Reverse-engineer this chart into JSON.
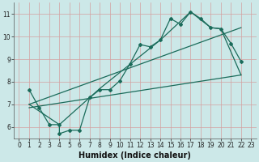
{
  "title": "",
  "xlabel": "Humidex (Indice chaleur)",
  "xlim": [
    -0.5,
    23.5
  ],
  "ylim": [
    5.5,
    11.5
  ],
  "xticks": [
    0,
    1,
    2,
    3,
    4,
    5,
    6,
    7,
    8,
    9,
    10,
    11,
    12,
    13,
    14,
    15,
    16,
    17,
    18,
    19,
    20,
    21,
    22,
    23
  ],
  "yticks": [
    6,
    7,
    8,
    9,
    10,
    11
  ],
  "bg_color": "#cce8e8",
  "grid_color": "#d4a0a0",
  "line_color": "#1a6b5a",
  "line1_x": [
    1,
    2,
    3,
    4,
    4,
    5,
    6,
    7,
    8,
    9,
    10,
    11,
    12,
    13,
    14,
    15,
    16,
    17,
    18,
    19,
    20,
    21,
    22
  ],
  "line1_y": [
    7.65,
    6.85,
    6.1,
    6.1,
    5.7,
    5.85,
    5.85,
    7.3,
    7.65,
    7.65,
    8.05,
    8.8,
    9.65,
    9.55,
    9.85,
    10.8,
    10.55,
    11.1,
    10.8,
    10.4,
    10.35,
    9.7,
    8.9
  ],
  "line2_x": [
    1,
    22
  ],
  "line2_y": [
    6.85,
    8.3
  ],
  "line3_x": [
    1,
    22
  ],
  "line3_y": [
    7.0,
    10.4
  ],
  "line4_x": [
    1,
    4,
    8,
    14,
    17,
    19,
    20,
    22
  ],
  "line4_y": [
    7.0,
    6.1,
    7.7,
    9.85,
    11.1,
    10.4,
    10.35,
    8.3
  ],
  "tick_fontsize": 5.5,
  "xlabel_fontsize": 7,
  "lw": 0.9,
  "ms": 2.0
}
